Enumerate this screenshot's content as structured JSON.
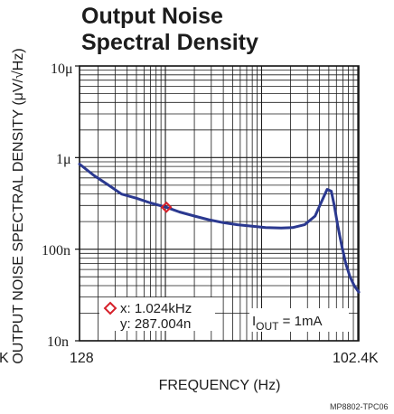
{
  "chart_data": {
    "type": "line",
    "title_lines": [
      "Output Noise",
      "Spectral Density"
    ],
    "xlabel": "FREQUENCY (Hz)",
    "ylabel": "OUTPUT NOISE SPECTRAL DENSITY (μV/√Hz)",
    "xscale": "log",
    "yscale": "log",
    "xlim": [
      128,
      102400
    ],
    "ylim": [
      1e-08,
      1e-05
    ],
    "x_tick_labels": [
      "128",
      "102.4K"
    ],
    "x_left_edge_label": "K",
    "y_tick_labels": [
      "10n",
      "100n",
      "1μ",
      "10μ"
    ],
    "y_tick_values": [
      1e-08,
      1e-07,
      1e-06,
      1e-05
    ],
    "grid": true,
    "series": [
      {
        "color": "#2b3990",
        "x": [
          128,
          180,
          250,
          350,
          500,
          700,
          1024,
          1400,
          2000,
          2800,
          4000,
          5600,
          8000,
          11000,
          16000,
          21000,
          28000,
          36000,
          42000,
          48000,
          53000,
          57000,
          62000,
          68000,
          75000,
          83000,
          92000,
          102400
        ],
        "y": [
          8.5e-07,
          6.4e-07,
          5.1e-07,
          4e-07,
          3.6e-07,
          3.2e-07,
          2.87e-07,
          2.55e-07,
          2.3e-07,
          2.1e-07,
          1.95e-07,
          1.85e-07,
          1.78e-07,
          1.72e-07,
          1.7e-07,
          1.72e-07,
          1.85e-07,
          2.3e-07,
          3.3e-07,
          4.5e-07,
          4.3e-07,
          3e-07,
          1.8e-07,
          1.1e-07,
          7e-08,
          5e-08,
          4e-08,
          3.4e-08
        ]
      }
    ],
    "marker": {
      "x": 1024,
      "y": 2.87004e-07,
      "color": "#d6202a"
    },
    "readout": {
      "x_text": "x: 1.024kHz",
      "y_text": "y: 287.004n"
    },
    "annotation": {
      "main": "I",
      "sub": "OUT",
      "rest": " = 1mA"
    },
    "figure_id": "MP8802-TPC06"
  }
}
